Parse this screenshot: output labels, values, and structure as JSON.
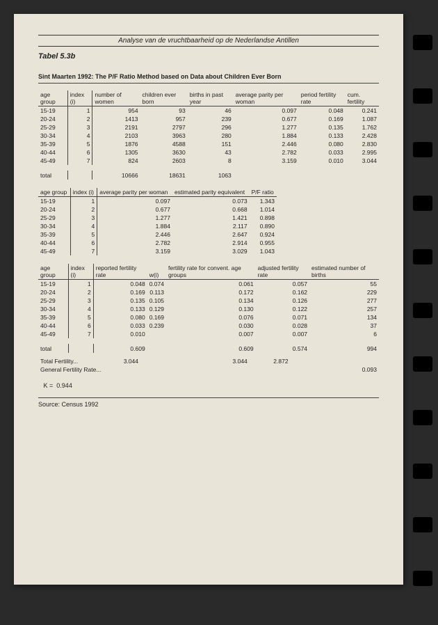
{
  "header": {
    "title": "Analyse van de vruchtbaarheid op de Nederlandse Antillen",
    "table_label": "Tabel 5.3b"
  },
  "subtitle": "Sint Maarten 1992: The P/F Ratio Method based on Data about Children Ever Born",
  "table1": {
    "headers": [
      "age group",
      "index (i)",
      "number of women",
      "children ever born",
      "births in past year",
      "average parity per woman",
      "period fertility rate",
      "cum. fertility"
    ],
    "rows": [
      [
        "15-19",
        "1",
        "954",
        "93",
        "46",
        "0.097",
        "0.048",
        "0.241"
      ],
      [
        "20-24",
        "2",
        "1413",
        "957",
        "239",
        "0.677",
        "0.169",
        "1.087"
      ],
      [
        "25-29",
        "3",
        "2191",
        "2797",
        "296",
        "1.277",
        "0.135",
        "1.762"
      ],
      [
        "30-34",
        "4",
        "2103",
        "3963",
        "280",
        "1.884",
        "0.133",
        "2.428"
      ],
      [
        "35-39",
        "5",
        "1876",
        "4588",
        "151",
        "2.446",
        "0.080",
        "2.830"
      ],
      [
        "40-44",
        "6",
        "1305",
        "3630",
        "43",
        "2.782",
        "0.033",
        "2.995"
      ],
      [
        "45-49",
        "7",
        "824",
        "2603",
        "8",
        "3.159",
        "0.010",
        "3.044"
      ]
    ],
    "total": [
      "total",
      "",
      "10666",
      "18631",
      "1063",
      "",
      "",
      ""
    ]
  },
  "table2": {
    "headers": [
      "age group",
      "index (i)",
      "average parity per woman",
      "estimated parity equivalent",
      "P/F ratio"
    ],
    "rows": [
      [
        "15-19",
        "1",
        "0.097",
        "0.073",
        "1.343"
      ],
      [
        "20-24",
        "2",
        "0.677",
        "0.668",
        "1.014"
      ],
      [
        "25-29",
        "3",
        "1.277",
        "1.421",
        "0.898"
      ],
      [
        "30-34",
        "4",
        "1.884",
        "2.117",
        "0.890"
      ],
      [
        "35-39",
        "5",
        "2.446",
        "2.647",
        "0.924"
      ],
      [
        "40-44",
        "6",
        "2.782",
        "2.914",
        "0.955"
      ],
      [
        "45-49",
        "7",
        "3.159",
        "3.029",
        "1.043"
      ]
    ]
  },
  "table3": {
    "headers": [
      "age group",
      "index (i)",
      "reported fertility rate",
      "w(i)",
      "fertility rate for convent. age groups",
      "adjusted fertility rate",
      "estimated number of births"
    ],
    "rows": [
      [
        "15-19",
        "1",
        "0.048",
        "0.074",
        "0.061",
        "0.057",
        "55"
      ],
      [
        "20-24",
        "2",
        "0.169",
        "0.113",
        "0.172",
        "0.162",
        "229"
      ],
      [
        "25-29",
        "3",
        "0.135",
        "0.105",
        "0.134",
        "0.126",
        "277"
      ],
      [
        "30-34",
        "4",
        "0.133",
        "0.129",
        "0.130",
        "0.122",
        "257"
      ],
      [
        "35-39",
        "5",
        "0.080",
        "0.169",
        "0.076",
        "0.071",
        "134"
      ],
      [
        "40-44",
        "6",
        "0.033",
        "0.239",
        "0.030",
        "0.028",
        "37"
      ],
      [
        "45-49",
        "7",
        "0.010",
        "",
        "0.007",
        "0.007",
        "6"
      ]
    ],
    "total": [
      "total",
      "",
      "0.609",
      "",
      "0.609",
      "0.574",
      "994"
    ]
  },
  "summary": {
    "tf_label": "Total Fertility...",
    "tf_v1": "3.044",
    "tf_v2": "3.044",
    "tf_v3": "2.872",
    "gfr_label": "General Fertility Rate...",
    "gfr_value": "0.093",
    "k_label": "K =",
    "k_value": "0.944"
  },
  "source": "Source: Census 1992",
  "style": {
    "page_bg": "#e8e4d8",
    "text_color": "#222",
    "font_size_body": 8.5,
    "font_size_header": 10
  }
}
